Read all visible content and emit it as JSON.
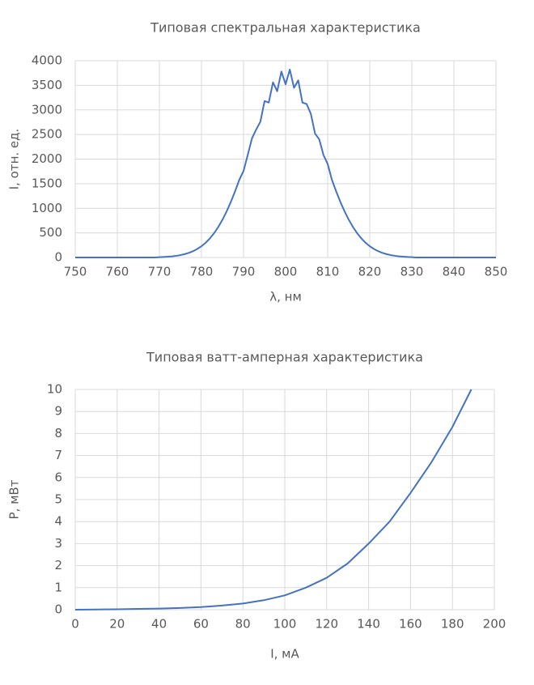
{
  "chart_data": [
    {
      "type": "line",
      "title": "Типовая спектральная характеристика",
      "x_label": "λ, нм",
      "y_label": "I, отн. ед.",
      "x": [
        750,
        751,
        752,
        753,
        754,
        755,
        756,
        757,
        758,
        759,
        760,
        761,
        762,
        763,
        764,
        765,
        766,
        767,
        768,
        769,
        770,
        771,
        772,
        773,
        774,
        775,
        776,
        777,
        778,
        779,
        780,
        781,
        782,
        783,
        784,
        785,
        786,
        787,
        788,
        789,
        790,
        791,
        792,
        793,
        794,
        795,
        796,
        797,
        798,
        799,
        800,
        801,
        802,
        803,
        804,
        805,
        806,
        807,
        808,
        809,
        810,
        811,
        812,
        813,
        814,
        815,
        816,
        817,
        818,
        819,
        820,
        821,
        822,
        823,
        824,
        825,
        826,
        827,
        828,
        829,
        830,
        831,
        832,
        833,
        834,
        835,
        836,
        837,
        838,
        839,
        840,
        841,
        842,
        843,
        844,
        845,
        846,
        847,
        848,
        849,
        850
      ],
      "values": [
        0,
        0,
        0,
        0,
        0,
        0,
        0,
        0,
        0,
        0,
        0,
        0,
        0,
        0,
        0,
        0,
        0,
        0,
        0,
        0,
        7,
        11,
        16,
        23,
        34,
        48,
        68,
        94,
        128,
        173,
        229,
        300,
        388,
        494,
        621,
        769,
        940,
        1133,
        1348,
        1580,
        1760,
        2084,
        2420,
        2600,
        2760,
        3180,
        3150,
        3560,
        3380,
        3780,
        3520,
        3820,
        3450,
        3600,
        3150,
        3120,
        2920,
        2520,
        2400,
        2084,
        1900,
        1580,
        1348,
        1133,
        940,
        769,
        621,
        494,
        388,
        300,
        229,
        173,
        128,
        94,
        68,
        48,
        34,
        23,
        16,
        11,
        7,
        0,
        0,
        0,
        0,
        0,
        0,
        0,
        0,
        0,
        0,
        0,
        0,
        0,
        0,
        0,
        0,
        0,
        0,
        0,
        0
      ],
      "color": "#4472c4",
      "xlim": [
        750,
        850
      ],
      "ylim": [
        0,
        4000
      ],
      "xticks": [
        750,
        760,
        770,
        780,
        790,
        800,
        810,
        820,
        830,
        840,
        850
      ],
      "yticks": [
        0,
        500,
        1000,
        1500,
        2000,
        2500,
        3000,
        3500,
        4000
      ],
      "grid": true
    },
    {
      "type": "line",
      "title": "Типовая ватт-амперная характеристика",
      "x_label": "I, мА",
      "y_label": "P, мВт",
      "x": [
        0,
        10,
        20,
        30,
        40,
        50,
        60,
        70,
        80,
        90,
        100,
        110,
        120,
        130,
        140,
        150,
        160,
        170,
        180,
        189
      ],
      "values": [
        0,
        0.01,
        0.02,
        0.035,
        0.05,
        0.08,
        0.12,
        0.19,
        0.28,
        0.43,
        0.65,
        1.0,
        1.45,
        2.1,
        3.0,
        4.0,
        5.3,
        6.7,
        8.3,
        10
      ],
      "color": "#4472c4",
      "xlim": [
        0,
        200
      ],
      "ylim": [
        0,
        10
      ],
      "xticks": [
        0,
        20,
        40,
        60,
        80,
        100,
        120,
        140,
        160,
        180,
        200
      ],
      "yticks": [
        0,
        1,
        2,
        3,
        4,
        5,
        6,
        7,
        8,
        9,
        10
      ],
      "grid": true
    }
  ]
}
